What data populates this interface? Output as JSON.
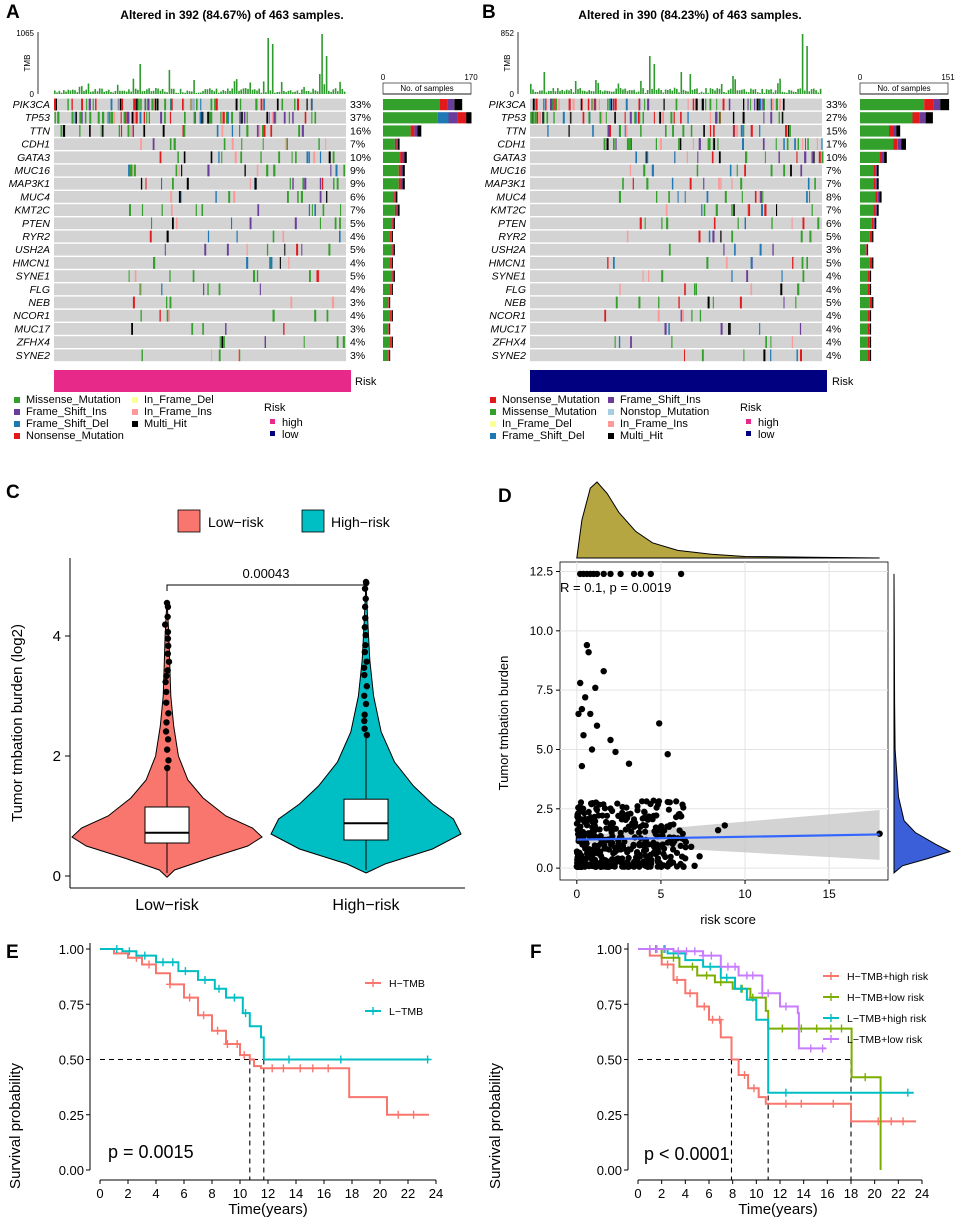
{
  "panel_labels": {
    "a": "A",
    "b": "B",
    "c": "C",
    "d": "D",
    "e": "E",
    "f": "F"
  },
  "colors": {
    "missense": "#33a02c",
    "frame_shift_ins": "#6a3d9a",
    "frame_shift_del": "#1f78b4",
    "nonsense": "#e31a1c",
    "in_frame_del": "#ffff99",
    "in_frame_ins": "#fb9a99",
    "multi_hit": "#000000",
    "nonstop": "#a6cee3",
    "high": "#e7298a",
    "low": "#000080",
    "salmon": "#F8766D",
    "teal": "#00BFC4",
    "green": "#7CAE00",
    "purple": "#C77CFF",
    "fitline": "#3366FF",
    "olive": "#b5a642",
    "gray": "#d3d3d3"
  },
  "chart_data": [
    {
      "type": "oncoplot",
      "id": "A",
      "title": "Altered in 392 (84.67%) of 463 samples.",
      "tmb_label": "TMB",
      "tmb_max": "1065",
      "tmb_min": "0",
      "count_axis_max": 170,
      "count_axis_labels": [
        "0",
        "170"
      ],
      "count_axis_title": "No. of samples",
      "genes": [
        "PIK3CA",
        "TP53",
        "TTN",
        "CDH1",
        "GATA3",
        "MUC16",
        "MAP3K1",
        "MUC4",
        "KMT2C",
        "PTEN",
        "RYR2",
        "USH2A",
        "HMCN1",
        "SYNE1",
        "FLG",
        "NEB",
        "NCOR1",
        "MUC17",
        "ZFHX4",
        "SYNE2"
      ],
      "percents": [
        "33%",
        "37%",
        "16%",
        "7%",
        "10%",
        "9%",
        "9%",
        "6%",
        "7%",
        "5%",
        "4%",
        "5%",
        "4%",
        "5%",
        "4%",
        "3%",
        "4%",
        "3%",
        "4%",
        "3%"
      ],
      "counts": [
        153,
        171,
        74,
        32,
        46,
        42,
        42,
        28,
        32,
        23,
        19,
        23,
        19,
        23,
        19,
        14,
        19,
        14,
        19,
        14
      ],
      "risk_label": "Risk",
      "risk_color_key": "high",
      "legend": [
        [
          "Missense_Mutation",
          "missense"
        ],
        [
          "Frame_Shift_Ins",
          "frame_shift_ins"
        ],
        [
          "Frame_Shift_Del",
          "frame_shift_del"
        ],
        [
          "Nonsense_Mutation",
          "nonsense"
        ],
        [
          "In_Frame_Del",
          "in_frame_del"
        ],
        [
          "In_Frame_Ins",
          "in_frame_ins"
        ],
        [
          "Multi_Hit",
          "multi_hit"
        ]
      ],
      "legend_title": "Risk",
      "legend_levels": [
        "high",
        "low"
      ]
    },
    {
      "type": "oncoplot",
      "id": "B",
      "title": "Altered in 390 (84.23%) of 463 samples.",
      "tmb_label": "TMB",
      "tmb_max": "852",
      "tmb_min": "0",
      "count_axis_max": 151,
      "count_axis_labels": [
        "0",
        "151"
      ],
      "count_axis_title": "No. of samples",
      "genes": [
        "PIK3CA",
        "TP53",
        "TTN",
        "CDH1",
        "GATA3",
        "MUC16",
        "MAP3K1",
        "MUC4",
        "KMT2C",
        "PTEN",
        "RYR2",
        "USH2A",
        "HMCN1",
        "SYNE1",
        "FLG",
        "NEB",
        "NCOR1",
        "MUC17",
        "ZFHX4",
        "SYNE2"
      ],
      "percents": [
        "33%",
        "27%",
        "15%",
        "17%",
        "10%",
        "7%",
        "7%",
        "8%",
        "7%",
        "6%",
        "5%",
        "3%",
        "5%",
        "4%",
        "4%",
        "5%",
        "4%",
        "4%",
        "4%",
        "4%"
      ],
      "counts": [
        153,
        125,
        69,
        79,
        46,
        32,
        32,
        37,
        32,
        28,
        23,
        14,
        23,
        19,
        19,
        23,
        19,
        19,
        19,
        19
      ],
      "risk_label": "Risk",
      "risk_color_key": "low",
      "legend": [
        [
          "Nonsense_Mutation",
          "nonsense"
        ],
        [
          "Missense_Mutation",
          "missense"
        ],
        [
          "In_Frame_Del",
          "in_frame_del"
        ],
        [
          "Frame_Shift_Del",
          "frame_shift_del"
        ],
        [
          "Frame_Shift_Ins",
          "frame_shift_ins"
        ],
        [
          "Nonstop_Mutation",
          "nonstop"
        ],
        [
          "In_Frame_Ins",
          "in_frame_ins"
        ],
        [
          "Multi_Hit",
          "multi_hit"
        ]
      ],
      "legend_title": "Risk",
      "legend_levels": [
        "high",
        "low"
      ]
    },
    {
      "type": "violin",
      "id": "C",
      "legend": [
        "Low−risk",
        "High−risk"
      ],
      "categories": [
        "Low−risk",
        "High−risk"
      ],
      "ylabel": "Tumor tmbation burden (log2)",
      "ylim": [
        -0.2,
        5.3
      ],
      "yticks": [
        0,
        2,
        4
      ],
      "pvalue": "0.00043",
      "boxes": [
        {
          "q1": 0.55,
          "median": 0.72,
          "q3": 1.15,
          "whisk_lo": 0.05,
          "whisk_hi": 1.75,
          "max": 4.55
        },
        {
          "q1": 0.6,
          "median": 0.88,
          "q3": 1.28,
          "whisk_lo": 0.1,
          "whisk_hi": 2.3,
          "max": 4.9
        }
      ]
    },
    {
      "type": "scatter",
      "id": "D",
      "xlabel": "risk score",
      "ylabel": "Tumor tmbation burden",
      "xlim": [
        -1,
        18.5
      ],
      "ylim": [
        -0.5,
        12.9
      ],
      "xticks": [
        0,
        5,
        10,
        15
      ],
      "yticks": [
        0,
        2.5,
        5,
        7.5,
        10,
        12.5
      ],
      "ytick_labels": [
        "0.0",
        "2.5",
        "5.0",
        "7.5",
        "10.0",
        "12.5"
      ],
      "annotation": "R = 0.1, p = 0.0019",
      "fit": {
        "x0": 0,
        "y0": 1.2,
        "x1": 18,
        "y1": 1.42
      },
      "ceiling_points": [
        [
          0.2,
          12.4
        ],
        [
          0.4,
          12.4
        ],
        [
          0.6,
          12.4
        ],
        [
          0.8,
          12.4
        ],
        [
          1.0,
          12.4
        ],
        [
          1.2,
          12.4
        ],
        [
          1.6,
          12.4
        ],
        [
          2.0,
          12.4
        ],
        [
          2.6,
          12.4
        ],
        [
          3.4,
          12.4
        ],
        [
          3.8,
          12.4
        ],
        [
          4.4,
          12.4
        ],
        [
          6.2,
          12.4
        ]
      ],
      "outliers": [
        [
          0.6,
          9.4
        ],
        [
          0.7,
          9.1
        ],
        [
          0.2,
          7.8
        ],
        [
          1.1,
          7.6
        ],
        [
          1.6,
          8.3
        ],
        [
          0.5,
          7.2
        ],
        [
          0.3,
          6.7
        ],
        [
          0.1,
          6.5
        ],
        [
          0.8,
          6.5
        ],
        [
          1.2,
          6.0
        ],
        [
          4.9,
          6.1
        ],
        [
          0.4,
          5.6
        ],
        [
          2.0,
          5.4
        ],
        [
          0.9,
          5.0
        ],
        [
          5.4,
          4.8
        ],
        [
          2.3,
          4.9
        ],
        [
          3.1,
          4.4
        ],
        [
          0.3,
          4.3
        ],
        [
          8.4,
          1.6
        ],
        [
          8.8,
          1.8
        ],
        [
          7.3,
          0.5
        ],
        [
          6.4,
          1.2
        ],
        [
          6.8,
          0.9
        ],
        [
          7.0,
          0.1
        ],
        [
          18.0,
          1.45
        ]
      ]
    },
    {
      "type": "line",
      "id": "E",
      "xlabel": "Time(years)",
      "ylabel": "Survival probability",
      "xlim": [
        0,
        24
      ],
      "ylim": [
        0,
        1
      ],
      "xticks": [
        0,
        2,
        4,
        6,
        8,
        10,
        12,
        14,
        16,
        18,
        20,
        22,
        24
      ],
      "yticks": [
        "0.00",
        "0.25",
        "0.50",
        "0.75",
        "1.00"
      ],
      "pvalue": "p = 0.0015",
      "series": [
        {
          "name": "H−TMB",
          "color": "salmon",
          "median": 10.7,
          "points": [
            [
              0,
              1
            ],
            [
              1,
              0.98
            ],
            [
              2,
              0.96
            ],
            [
              3,
              0.93
            ],
            [
              4,
              0.89
            ],
            [
              5,
              0.84
            ],
            [
              6,
              0.78
            ],
            [
              7,
              0.7
            ],
            [
              8,
              0.63
            ],
            [
              9,
              0.57
            ],
            [
              10,
              0.52
            ],
            [
              10.7,
              0.5
            ],
            [
              11,
              0.47
            ],
            [
              11.5,
              0.46
            ],
            [
              17.2,
              0.46
            ],
            [
              17.8,
              0.33
            ],
            [
              20.3,
              0.33
            ],
            [
              20.5,
              0.25
            ],
            [
              23.5,
              0.25
            ]
          ],
          "censor": [
            2.6,
            3.5,
            5,
            6.4,
            7.4,
            8.4,
            9.1,
            9.8,
            10.3,
            12.3,
            13.1,
            14.3,
            15.2,
            16.3,
            21.3,
            22.4
          ]
        },
        {
          "name": "L−TMB",
          "color": "teal",
          "median": 11.7,
          "points": [
            [
              0,
              1
            ],
            [
              1.6,
              0.99
            ],
            [
              2.6,
              0.97
            ],
            [
              4,
              0.94
            ],
            [
              5.6,
              0.9
            ],
            [
              7,
              0.86
            ],
            [
              8.2,
              0.82
            ],
            [
              9,
              0.78
            ],
            [
              10.2,
              0.71
            ],
            [
              10.7,
              0.65
            ],
            [
              11.5,
              0.6
            ],
            [
              11.7,
              0.5
            ],
            [
              23.5,
              0.5
            ]
          ],
          "censor": [
            1.2,
            2.1,
            3.2,
            4.5,
            5.2,
            6.1,
            7.5,
            8.5,
            9.6,
            10.4,
            13.5,
            17.2,
            23.4
          ]
        }
      ]
    },
    {
      "type": "line",
      "id": "F",
      "xlabel": "Time(years)",
      "ylabel": "Survival probability",
      "xlim": [
        0,
        24
      ],
      "ylim": [
        0,
        1
      ],
      "xticks": [
        0,
        2,
        4,
        6,
        8,
        10,
        12,
        14,
        16,
        18,
        20,
        22,
        24
      ],
      "yticks": [
        "0.00",
        "0.25",
        "0.50",
        "0.75",
        "1.00"
      ],
      "pvalue": "p < 0.0001",
      "series": [
        {
          "name": "H−TMB+high risk",
          "color": "salmon",
          "median": 7.9,
          "points": [
            [
              0,
              1
            ],
            [
              1,
              0.97
            ],
            [
              2,
              0.93
            ],
            [
              3,
              0.86
            ],
            [
              4,
              0.8
            ],
            [
              5,
              0.74
            ],
            [
              6,
              0.68
            ],
            [
              7,
              0.6
            ],
            [
              7.9,
              0.5
            ],
            [
              8.5,
              0.43
            ],
            [
              9.3,
              0.37
            ],
            [
              10.2,
              0.33
            ],
            [
              10.8,
              0.3
            ],
            [
              17.8,
              0.3
            ],
            [
              18,
              0.22
            ],
            [
              23.5,
              0.22
            ]
          ],
          "censor": [
            2.5,
            3.3,
            4.4,
            5.6,
            6.3,
            6.9,
            9.0,
            9.8,
            12.5,
            13.8,
            16.5,
            20.3,
            21.4,
            22.4
          ]
        },
        {
          "name": "H−TMB+low risk",
          "color": "green",
          "median": 18.0,
          "points": [
            [
              0,
              1
            ],
            [
              2,
              0.96
            ],
            [
              3.5,
              0.92
            ],
            [
              5,
              0.88
            ],
            [
              6.5,
              0.85
            ],
            [
              8,
              0.82
            ],
            [
              9.5,
              0.78
            ],
            [
              10.8,
              0.72
            ],
            [
              11,
              0.64
            ],
            [
              18,
              0.64
            ],
            [
              18.05,
              0.42
            ],
            [
              20.3,
              0.42
            ],
            [
              20.5,
              0.0
            ]
          ],
          "censor": [
            1.5,
            3.0,
            4.6,
            5.8,
            7.0,
            8.8,
            9.7,
            12.2,
            13.8,
            15.1,
            16.3,
            17.2,
            19.2
          ]
        },
        {
          "name": "L−TMB+high risk",
          "color": "teal",
          "median": 11.0,
          "points": [
            [
              0,
              1
            ],
            [
              2.5,
              0.98
            ],
            [
              4,
              0.95
            ],
            [
              5.5,
              0.92
            ],
            [
              7,
              0.87
            ],
            [
              8.2,
              0.82
            ],
            [
              9.2,
              0.77
            ],
            [
              10,
              0.68
            ],
            [
              11,
              0.35
            ],
            [
              23.3,
              0.35
            ]
          ],
          "censor": [
            2.2,
            3.4,
            6.1,
            7.5,
            8.7,
            12.5,
            22.8
          ]
        },
        {
          "name": "L−TMB+low risk",
          "color": "purple",
          "median": null,
          "points": [
            [
              0,
              1
            ],
            [
              3,
              0.99
            ],
            [
              5.5,
              0.97
            ],
            [
              7,
              0.92
            ],
            [
              8.5,
              0.88
            ],
            [
              10.5,
              0.8
            ],
            [
              12,
              0.74
            ],
            [
              13.5,
              0.71
            ],
            [
              13.6,
              0.55
            ],
            [
              15.9,
              0.55
            ]
          ],
          "censor": [
            1.0,
            1.6,
            2.3,
            3.4,
            4.1,
            4.8,
            5.5,
            6.2,
            7.6,
            8.2,
            9.2,
            9.7,
            10.5,
            11.0,
            12.5,
            14.6,
            15.6
          ]
        }
      ]
    }
  ]
}
